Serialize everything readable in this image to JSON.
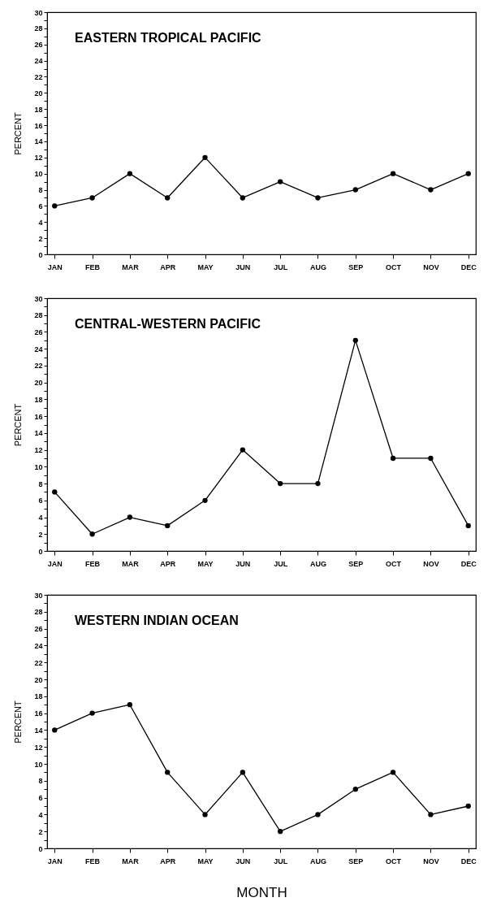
{
  "chart_data": [
    {
      "type": "line",
      "title": "EASTERN TROPICAL PACIFIC",
      "ylabel": "PERCENT",
      "categories": [
        "JAN",
        "FEB",
        "MAR",
        "APR",
        "MAY",
        "JUN",
        "JUL",
        "AUG",
        "SEP",
        "OCT",
        "NOV",
        "DEC"
      ],
      "series": [
        {
          "color": "#000000",
          "values": [
            6,
            7,
            10,
            7,
            12,
            7,
            9,
            7,
            8,
            10,
            8,
            10
          ]
        }
      ],
      "ylim": [
        0,
        30
      ],
      "yticks": [
        0,
        {
          "value": 1,
          "label": null
        },
        2,
        {
          "value": 3,
          "label": null
        },
        4,
        {
          "value": 5,
          "label": null
        },
        6,
        {
          "value": 7,
          "label": null
        },
        8,
        {
          "value": 9,
          "label": null
        },
        10,
        {
          "value": 11,
          "label": null
        },
        12,
        {
          "value": 13,
          "label": null
        },
        14,
        {
          "value": 15,
          "label": null
        },
        16,
        {
          "value": 17,
          "label": null
        },
        18,
        {
          "value": 19,
          "label": null
        },
        20,
        {
          "value": 21,
          "label": null
        },
        22,
        {
          "value": 23,
          "label": null
        },
        24,
        {
          "value": 25,
          "label": null
        },
        26,
        {
          "value": 27,
          "label": null
        },
        28,
        {
          "value": 29,
          "label": null
        },
        30
      ],
      "marker": "circle",
      "line_style": "solid"
    },
    {
      "type": "line",
      "title": "CENTRAL-WESTERN PACIFIC",
      "ylabel": "PERCENT",
      "categories": [
        "JAN",
        "FEB",
        "MAR",
        "APR",
        "MAY",
        "JUN",
        "JUL",
        "AUG",
        "SEP",
        "OCT",
        "NOV",
        "DEC"
      ],
      "series": [
        {
          "color": "#000000",
          "values": [
            7,
            2,
            4,
            3,
            6,
            12,
            8,
            8,
            25,
            11,
            11,
            3
          ]
        }
      ],
      "ylim": [
        0,
        30
      ],
      "yticks": [
        0,
        {
          "value": 1,
          "label": null
        },
        2,
        {
          "value": 3,
          "label": null
        },
        4,
        {
          "value": 5,
          "label": null
        },
        6,
        {
          "value": 7,
          "label": null
        },
        8,
        {
          "value": 9,
          "label": null
        },
        10,
        {
          "value": 11,
          "label": null
        },
        12,
        {
          "value": 13,
          "label": null
        },
        14,
        {
          "value": 15,
          "label": null
        },
        16,
        {
          "value": 17,
          "label": null
        },
        18,
        {
          "value": 19,
          "label": null
        },
        20,
        {
          "value": 21,
          "label": null
        },
        22,
        {
          "value": 23,
          "label": null
        },
        24,
        {
          "value": 25,
          "label": null
        },
        26,
        {
          "value": 27,
          "label": null
        },
        28,
        {
          "value": 29,
          "label": null
        },
        30
      ],
      "marker": "circle",
      "line_style": "solid"
    },
    {
      "type": "line",
      "title": "WESTERN INDIAN OCEAN",
      "ylabel": "PERCENT",
      "xlabel": "MONTH",
      "categories": [
        "JAN",
        "FEB",
        "MAR",
        "APR",
        "MAY",
        "JUN",
        "JUL",
        "AUG",
        "SEP",
        "OCT",
        "NOV",
        "DEC"
      ],
      "series": [
        {
          "color": "#000000",
          "values": [
            14,
            16,
            17,
            9,
            4,
            9,
            2,
            4,
            7,
            9,
            4,
            5
          ]
        }
      ],
      "ylim": [
        0,
        30
      ],
      "yticks": [
        0,
        {
          "value": 1,
          "label": null
        },
        2,
        {
          "value": 3,
          "label": null
        },
        4,
        {
          "value": 5,
          "label": null
        },
        6,
        {
          "value": 7,
          "label": null
        },
        8,
        {
          "value": 9,
          "label": null
        },
        10,
        {
          "value": 11,
          "label": null
        },
        12,
        {
          "value": 13,
          "label": null
        },
        14,
        {
          "value": 15,
          "label": null
        },
        16,
        {
          "value": 17,
          "label": null
        },
        18,
        {
          "value": 19,
          "label": null
        },
        20,
        {
          "value": 21,
          "label": null
        },
        22,
        {
          "value": 23,
          "label": null
        },
        24,
        {
          "value": 25,
          "label": null
        },
        26,
        {
          "value": 27,
          "label": null
        },
        28,
        {
          "value": 29,
          "label": null
        },
        30
      ],
      "marker": "circle",
      "line_style": "solid"
    }
  ]
}
